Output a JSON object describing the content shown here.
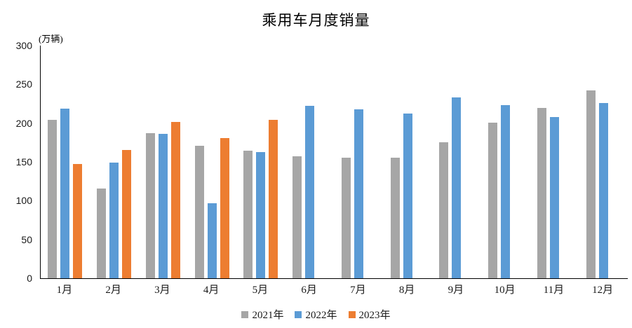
{
  "chart_data": {
    "type": "bar",
    "title": "乘用车月度销量",
    "unit_label": "(万辆)",
    "categories": [
      "1月",
      "2月",
      "3月",
      "4月",
      "5月",
      "6月",
      "7月",
      "8月",
      "9月",
      "10月",
      "11月",
      "12月"
    ],
    "series": [
      {
        "name": "2021年",
        "color": "#A6A6A6",
        "values": [
          204.5,
          115.6,
          187.4,
          170.4,
          164.6,
          156.9,
          155.1,
          155.2,
          175.1,
          200.7,
          219.2,
          242.2
        ]
      },
      {
        "name": "2022年",
        "color": "#5B9BD5",
        "values": [
          218.6,
          148.7,
          186.4,
          96.5,
          162.3,
          222.2,
          217.4,
          212.5,
          233.2,
          223.1,
          207.5,
          226.3
        ]
      },
      {
        "name": "2023年",
        "color": "#ED7D31",
        "values": [
          146.9,
          165.3,
          201.7,
          181.1,
          204.2,
          null,
          null,
          null,
          null,
          null,
          null,
          null
        ]
      }
    ],
    "ylim": [
      0,
      300
    ],
    "yticks": [
      0,
      50,
      100,
      150,
      200,
      250,
      300
    ],
    "grid": false,
    "legend_position": "bottom",
    "axis_color": "#000000"
  }
}
